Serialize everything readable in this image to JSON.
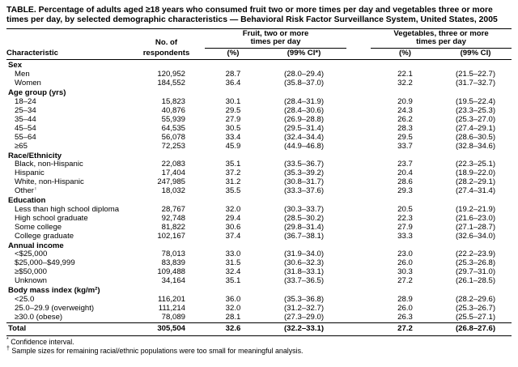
{
  "title": "TABLE. Percentage of adults aged ≥18 years who consumed fruit two or more times per day and vegetables three or more times per day, by selected demographic characteristics — Behavioral Risk Factor Surveillance System, United States, 2005",
  "header": {
    "characteristic": "Characteristic",
    "respondents_line1": "No. of",
    "respondents_line2": "respondents",
    "fruit_group_line1": "Fruit, two or more",
    "fruit_group_line2": "times per day",
    "veg_group_line1": "Vegetables, three or more",
    "veg_group_line2": "times per day",
    "pct_fruit": "(%)",
    "ci_fruit": "(99% CI*)",
    "pct_veg": "(%)",
    "ci_veg": "(99% CI)"
  },
  "sections": [
    {
      "header": "Sex",
      "rows": [
        {
          "label": "Men",
          "n": "120,952",
          "f_pct": "28.7",
          "f_ci": "(28.0–29.4)",
          "v_pct": "22.1",
          "v_ci": "(21.5–22.7)"
        },
        {
          "label": "Women",
          "n": "184,552",
          "f_pct": "36.4",
          "f_ci": "(35.8–37.0)",
          "v_pct": "32.2",
          "v_ci": "(31.7–32.7)"
        }
      ]
    },
    {
      "header": "Age group (yrs)",
      "rows": [
        {
          "label": "18–24",
          "n": "15,823",
          "f_pct": "30.1",
          "f_ci": "(28.4–31.9)",
          "v_pct": "20.9",
          "v_ci": "(19.5–22.4)"
        },
        {
          "label": "25–34",
          "n": "40,876",
          "f_pct": "29.5",
          "f_ci": "(28.4–30.6)",
          "v_pct": "24.3",
          "v_ci": "(23.3–25.3)"
        },
        {
          "label": "35–44",
          "n": "55,939",
          "f_pct": "27.9",
          "f_ci": "(26.9–28.8)",
          "v_pct": "26.2",
          "v_ci": "(25.3–27.0)"
        },
        {
          "label": "45–54",
          "n": "64,535",
          "f_pct": "30.5",
          "f_ci": "(29.5–31.4)",
          "v_pct": "28.3",
          "v_ci": "(27.4–29.1)"
        },
        {
          "label": "55–64",
          "n": "56,078",
          "f_pct": "33.4",
          "f_ci": "(32.4–34.4)",
          "v_pct": "29.5",
          "v_ci": "(28.6–30.5)"
        },
        {
          "label": "≥65",
          "n": "72,253",
          "f_pct": "45.9",
          "f_ci": "(44.9–46.8)",
          "v_pct": "33.7",
          "v_ci": "(32.8–34.6)"
        }
      ]
    },
    {
      "header": "Race/Ethnicity",
      "rows": [
        {
          "label": "Black, non-Hispanic",
          "n": "22,083",
          "f_pct": "35.1",
          "f_ci": "(33.5–36.7)",
          "v_pct": "23.7",
          "v_ci": "(22.3–25.1)"
        },
        {
          "label": "Hispanic",
          "n": "17,404",
          "f_pct": "37.2",
          "f_ci": "(35.3–39.2)",
          "v_pct": "20.4",
          "v_ci": "(18.9–22.0)"
        },
        {
          "label": "White, non-Hispanic",
          "n": "247,985",
          "f_pct": "31.2",
          "f_ci": "(30.8–31.7)",
          "v_pct": "28.6",
          "v_ci": "(28.2–29.1)"
        },
        {
          "label": "Other",
          "sup": "†",
          "n": "18,032",
          "f_pct": "35.5",
          "f_ci": "(33.3–37.6)",
          "v_pct": "29.3",
          "v_ci": "(27.4–31.4)"
        }
      ]
    },
    {
      "header": "Education",
      "rows": [
        {
          "label": "Less than high school diploma",
          "n": "28,767",
          "f_pct": "32.0",
          "f_ci": "(30.3–33.7)",
          "v_pct": "20.5",
          "v_ci": "(19.2–21.9)"
        },
        {
          "label": "High school graduate",
          "n": "92,748",
          "f_pct": "29.4",
          "f_ci": "(28.5–30.2)",
          "v_pct": "22.3",
          "v_ci": "(21.6–23.0)"
        },
        {
          "label": "Some college",
          "n": "81,822",
          "f_pct": "30.6",
          "f_ci": "(29.8–31.4)",
          "v_pct": "27.9",
          "v_ci": "(27.1–28.7)"
        },
        {
          "label": "College graduate",
          "n": "102,167",
          "f_pct": "37.4",
          "f_ci": "(36.7–38.1)",
          "v_pct": "33.3",
          "v_ci": "(32.6–34.0)"
        }
      ]
    },
    {
      "header": "Annual income",
      "rows": [
        {
          "label": "<$25,000",
          "n": "78,013",
          "f_pct": "33.0",
          "f_ci": "(31.9–34.0)",
          "v_pct": "23.0",
          "v_ci": "(22.2–23.9)"
        },
        {
          "label": "$25,000–$49,999",
          "n": "83,839",
          "f_pct": "31.5",
          "f_ci": "(30.6–32.3)",
          "v_pct": "26.0",
          "v_ci": "(25.3–26.8)"
        },
        {
          "label": "≥$50,000",
          "n": "109,488",
          "f_pct": "32.4",
          "f_ci": "(31.8–33.1)",
          "v_pct": "30.3",
          "v_ci": "(29.7–31.0)"
        },
        {
          "label": "Unknown",
          "n": "34,164",
          "f_pct": "35.1",
          "f_ci": "(33.7–36.5)",
          "v_pct": "27.2",
          "v_ci": "(26.1–28.5)"
        }
      ]
    },
    {
      "header": "Body mass index (kg/m²)",
      "rows": [
        {
          "label": "<25.0",
          "n": "116,201",
          "f_pct": "36.0",
          "f_ci": "(35.3–36.8)",
          "v_pct": "28.9",
          "v_ci": "(28.2–29.6)"
        },
        {
          "label": "25.0–29.9 (overweight)",
          "n": "111,214",
          "f_pct": "32.0",
          "f_ci": "(31.2–32.7)",
          "v_pct": "26.0",
          "v_ci": "(25.3–26.7)"
        },
        {
          "label": "≥30.0 (obese)",
          "n": "78,089",
          "f_pct": "28.1",
          "f_ci": "(27.3–29.0)",
          "v_pct": "26.3",
          "v_ci": "(25.5–27.1)"
        }
      ]
    }
  ],
  "total": {
    "label": "Total",
    "n": "305,504",
    "f_pct": "32.6",
    "f_ci": "(32.2–33.1)",
    "v_pct": "27.2",
    "v_ci": "(26.8–27.6)"
  },
  "footnotes": [
    {
      "mark": "*",
      "text": " Confidence interval."
    },
    {
      "mark": "†",
      "text": " Sample sizes for remaining racial/ethnic populations were too small for meaningful analysis."
    }
  ]
}
